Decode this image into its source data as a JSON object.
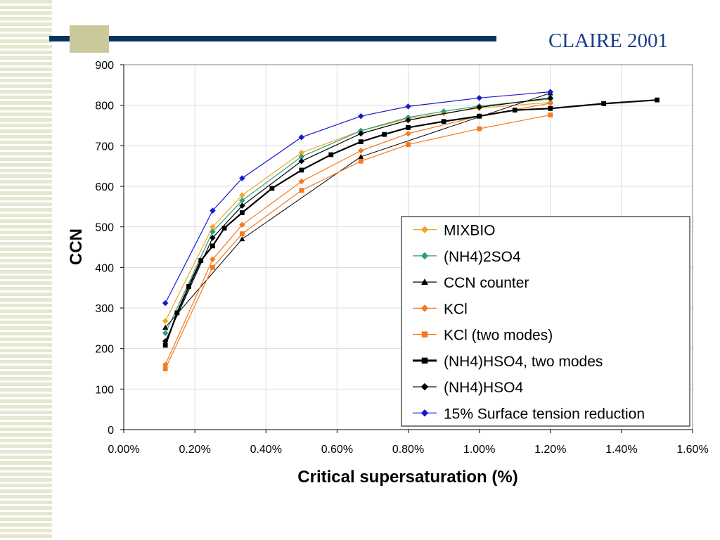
{
  "slide": {
    "title": "CLAIRE 2001"
  },
  "chart_data": {
    "type": "line",
    "title": "",
    "xlabel": "Critical supersaturation (%)",
    "ylabel": "CCN",
    "xlim": [
      0,
      1.6
    ],
    "ylim": [
      0,
      900
    ],
    "xticks": [
      0,
      0.2,
      0.4,
      0.6,
      0.8,
      1.0,
      1.2,
      1.4,
      1.6
    ],
    "xtick_labels": [
      "0.00%",
      "0.20%",
      "0.40%",
      "0.60%",
      "0.80%",
      "1.00%",
      "1.20%",
      "1.40%",
      "1.60%"
    ],
    "yticks": [
      0,
      100,
      200,
      300,
      400,
      500,
      600,
      700,
      800,
      900
    ],
    "ytick_labels": [
      "0",
      "100",
      "200",
      "300",
      "400",
      "500",
      "600",
      "700",
      "800",
      "900"
    ],
    "grid": true,
    "legend_position": "bottom-right",
    "series": [
      {
        "name": "MIXBIO",
        "color": "#f5a623",
        "marker": "diamond",
        "line_width": 1.2,
        "x": [
          0.117,
          0.25,
          0.333,
          0.5,
          0.667,
          0.8,
          0.9,
          1.0,
          1.2
        ],
        "y": [
          268,
          500,
          578,
          683,
          737,
          767,
          780,
          793,
          807
        ]
      },
      {
        "name": "(NH4)2SO4",
        "color": "#2e9e7b",
        "marker": "diamond",
        "line_width": 1.2,
        "x": [
          0.117,
          0.25,
          0.333,
          0.5,
          0.667,
          0.8,
          0.9,
          1.0,
          1.2
        ],
        "y": [
          238,
          488,
          565,
          673,
          737,
          770,
          785,
          798,
          815
        ]
      },
      {
        "name": "CCN counter",
        "color": "#000000",
        "marker": "triangle",
        "line_width": 1,
        "x": [
          0.117,
          0.333,
          0.667,
          1.2
        ],
        "y": [
          252,
          470,
          673,
          830
        ]
      },
      {
        "name": "KCl",
        "color": "#f47a20",
        "marker": "diamond",
        "line_width": 1.2,
        "x": [
          0.117,
          0.25,
          0.333,
          0.5,
          0.667,
          0.8,
          1.0,
          1.2
        ],
        "y": [
          160,
          420,
          505,
          612,
          688,
          730,
          773,
          805
        ]
      },
      {
        "name": "KCl (two modes)",
        "color": "#f47a20",
        "marker": "square",
        "line_width": 1.2,
        "x": [
          0.117,
          0.25,
          0.333,
          0.5,
          0.667,
          0.8,
          1.0,
          1.2
        ],
        "y": [
          150,
          400,
          483,
          590,
          662,
          703,
          742,
          776
        ]
      },
      {
        "name": "(NH4)HSO4, two modes",
        "color": "#000000",
        "marker": "square",
        "line_width": 2.2,
        "x": [
          0.117,
          0.15,
          0.183,
          0.217,
          0.25,
          0.283,
          0.333,
          0.417,
          0.5,
          0.583,
          0.667,
          0.733,
          0.8,
          0.9,
          1.0,
          1.1,
          1.2,
          1.35,
          1.5
        ],
        "y": [
          208,
          288,
          353,
          417,
          453,
          497,
          535,
          595,
          640,
          678,
          710,
          728,
          745,
          760,
          773,
          788,
          792,
          804,
          813
        ]
      },
      {
        "name": "(NH4)HSO4",
        "color": "#000000",
        "marker": "diamond",
        "line_width": 1.2,
        "x": [
          0.117,
          0.25,
          0.333,
          0.5,
          0.667,
          0.8,
          1.0,
          1.2
        ],
        "y": [
          218,
          473,
          552,
          662,
          730,
          763,
          795,
          818
        ]
      },
      {
        "name": "15% Surface tension reduction",
        "color": "#1a1acc",
        "marker": "diamond",
        "line_width": 1.2,
        "x": [
          0.117,
          0.25,
          0.333,
          0.5,
          0.667,
          0.8,
          1.0,
          1.2
        ],
        "y": [
          312,
          540,
          620,
          721,
          773,
          797,
          818,
          833
        ]
      }
    ]
  }
}
